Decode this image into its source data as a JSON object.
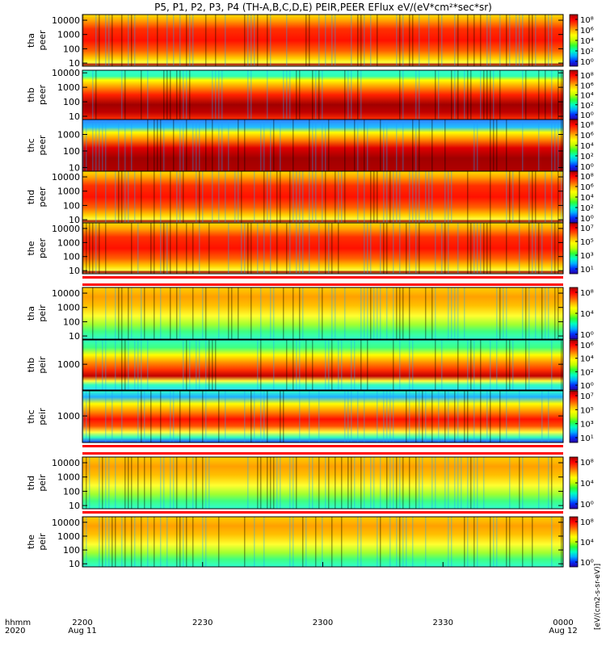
{
  "title": "P5, P1, P2, P3, P4 (TH-A,B,C,D,E) PEIR,PEER EFlux eV/(eV*cm²*sec*sr)",
  "colorbar_unit_label": "[eV/(cm2-s-sr-eV)]",
  "time_axis": {
    "row_label_1": "hhmm",
    "row_label_2": "2020",
    "ticks": [
      {
        "label": "2200",
        "sub": "Aug 11"
      },
      {
        "label": "2230",
        "sub": ""
      },
      {
        "label": "2300",
        "sub": ""
      },
      {
        "label": "2330",
        "sub": ""
      },
      {
        "label": "0000",
        "sub": "Aug 12"
      }
    ]
  },
  "chart_data": {
    "type": "heatmap",
    "x_range": [
      "2020-08-11 22:00",
      "2020-08-12 00:00"
    ],
    "y_scale": "log",
    "colormap": [
      "#2a00a0",
      "#0030ff",
      "#00b0ff",
      "#00ffc0",
      "#30ff30",
      "#c0ff00",
      "#ffff00",
      "#ffb000",
      "#ff5000",
      "#ff0000",
      "#a00000"
    ],
    "panels": [
      {
        "id": "tha-peer",
        "line1": "tha",
        "line2": "peer",
        "ylim": [
          6,
          25000
        ],
        "yticks": [
          "10000",
          "1000",
          "100",
          "10"
        ],
        "yvals": [
          10000,
          1000,
          100,
          10
        ],
        "cbar_ticks": [
          "10⁸",
          "10⁶",
          "10⁴",
          "10²",
          "10⁰"
        ],
        "profile": "peer-a"
      },
      {
        "id": "thb-peer",
        "line1": "thb",
        "line2": "peer",
        "ylim": [
          6,
          15000
        ],
        "yticks": [
          "10000",
          "1000",
          "100",
          "10"
        ],
        "yvals": [
          10000,
          1000,
          100,
          10
        ],
        "cbar_ticks": [
          "10⁸",
          "10⁶",
          "10⁴",
          "10²",
          "10⁰"
        ],
        "profile": "peer-b"
      },
      {
        "id": "thc-peer",
        "line1": "thc",
        "line2": "peer",
        "ylim": [
          6,
          8000
        ],
        "yticks": [
          "1000",
          "100",
          "10"
        ],
        "yvals": [
          1000,
          100,
          10
        ],
        "cbar_ticks": [
          "10⁸",
          "10⁶",
          "10⁴",
          "10²",
          "10⁰"
        ],
        "profile": "peer-c"
      },
      {
        "id": "thd-peer",
        "line1": "thd",
        "line2": "peer",
        "ylim": [
          6,
          25000
        ],
        "yticks": [
          "10000",
          "1000",
          "100",
          "10"
        ],
        "yvals": [
          10000,
          1000,
          100,
          10
        ],
        "cbar_ticks": [
          "10⁸",
          "10⁶",
          "10⁴",
          "10²",
          "10⁰"
        ],
        "profile": "peer-a"
      },
      {
        "id": "the-peer",
        "line1": "the",
        "line2": "peer",
        "ylim": [
          6,
          25000
        ],
        "yticks": [
          "10000",
          "1000",
          "100",
          "10"
        ],
        "yvals": [
          10000,
          1000,
          100,
          10
        ],
        "cbar_ticks": [
          "10⁷",
          "10⁵",
          "10³",
          "10¹"
        ],
        "profile": "peer-a"
      },
      {
        "id": "tha-peir",
        "line1": "tha",
        "line2": "peir",
        "ylim": [
          6,
          25000
        ],
        "yticks": [
          "10000",
          "1000",
          "100",
          "10"
        ],
        "yvals": [
          10000,
          1000,
          100,
          10
        ],
        "cbar_ticks": [
          "10⁸",
          "10⁴",
          "10⁰"
        ],
        "profile": "peir"
      },
      {
        "id": "thb-peir",
        "line1": "thb",
        "line2": "peir",
        "ylim": [
          150,
          6000
        ],
        "yticks": [
          "1000"
        ],
        "yvals": [
          1000
        ],
        "cbar_ticks": [
          "10⁶",
          "10⁴",
          "10²",
          "10⁰"
        ],
        "profile": "peir-b"
      },
      {
        "id": "thc-peir",
        "line1": "thc",
        "line2": "peir",
        "ylim": [
          150,
          6000
        ],
        "yticks": [
          "1000"
        ],
        "yvals": [
          1000
        ],
        "cbar_ticks": [
          "10⁷",
          "10⁵",
          "10³",
          "10¹"
        ],
        "profile": "peir-c"
      },
      {
        "id": "thd-peir",
        "line1": "thd",
        "line2": "peir",
        "ylim": [
          6,
          25000
        ],
        "yticks": [
          "10000",
          "1000",
          "100",
          "10"
        ],
        "yvals": [
          10000,
          1000,
          100,
          10
        ],
        "cbar_ticks": [
          "10⁸",
          "10⁴",
          "10⁰"
        ],
        "profile": "peir"
      },
      {
        "id": "the-peir",
        "line1": "the",
        "line2": "peir",
        "ylim": [
          6,
          25000
        ],
        "yticks": [
          "10000",
          "1000",
          "100",
          "10"
        ],
        "yvals": [
          10000,
          1000,
          100,
          10
        ],
        "cbar_ticks": [
          "10⁸",
          "10⁴",
          "10⁰"
        ],
        "profile": "peir"
      }
    ]
  }
}
